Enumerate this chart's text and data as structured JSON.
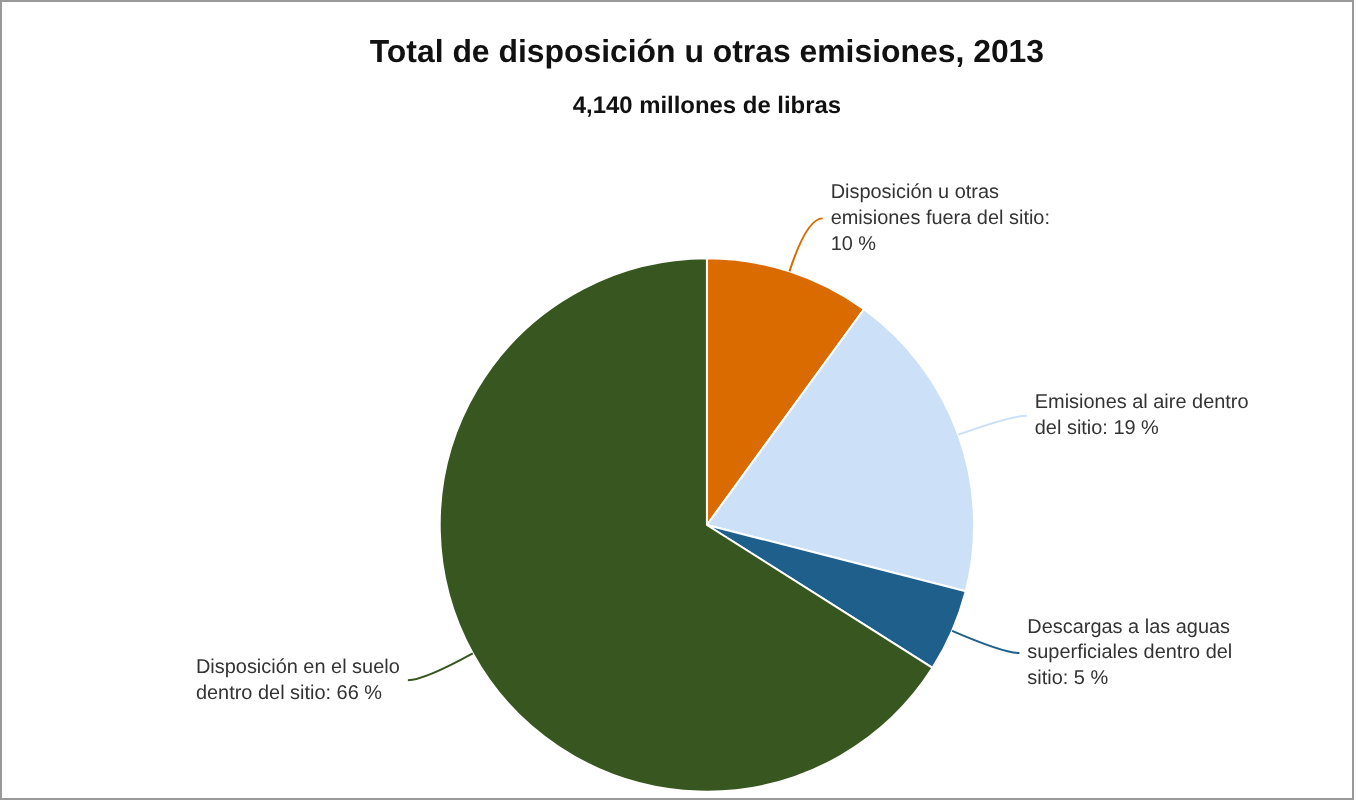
{
  "chart_data": {
    "type": "pie",
    "title": "Total de disposición u otras emisiones, 2013",
    "subtitle": "4,140 millones de libras",
    "categories": [
      "Disposición u otras emisiones fuera del sitio: 10 %",
      "Emisiones al aire dentro del sitio: 19 %",
      "Descargas a las aguas superficiales dentro del sitio: 5 %",
      "Disposición en el suelo dentro del sitio: 66 %"
    ],
    "values": [
      10,
      19,
      5,
      66
    ],
    "colors": [
      "#d96b00",
      "#cce0f8",
      "#1f5f8b",
      "#38561f"
    ],
    "legend": false
  }
}
